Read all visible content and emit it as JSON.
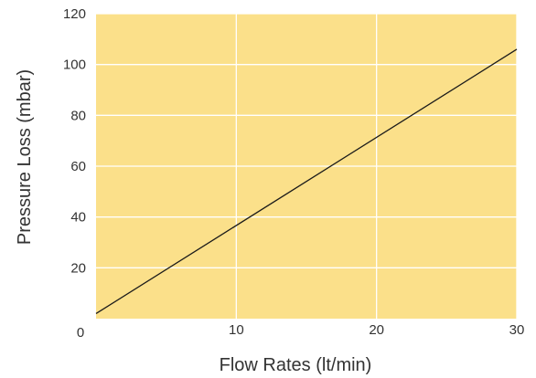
{
  "chart_data": {
    "type": "line",
    "xlabel": "Flow Rates (lt/min)",
    "ylabel": "Pressure Loss (mbar)",
    "xlim": [
      0,
      30
    ],
    "ylim": [
      0,
      120
    ],
    "x_ticks": [
      10,
      20,
      30
    ],
    "y_ticks": [
      0,
      20,
      40,
      60,
      80,
      100,
      120
    ],
    "grid": true,
    "series": [
      {
        "x": [
          0,
          30
        ],
        "y": [
          2,
          106
        ]
      }
    ],
    "colors": {
      "plot_background": "#fbe08a",
      "grid": "#ffffff",
      "line": "#1a1a1a"
    }
  }
}
